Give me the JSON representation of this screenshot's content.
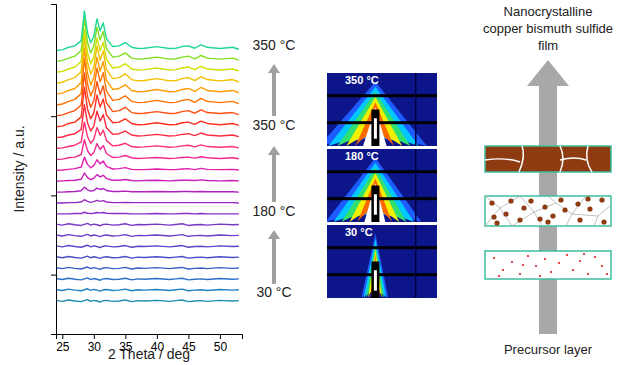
{
  "chart_data": {
    "type": "line",
    "xlabel": "2 Theta / deg",
    "ylabel": "Intensity / a.u.",
    "x": [
      24,
      25,
      26,
      27,
      28,
      28.5,
      29,
      29.5,
      30,
      30.5,
      31,
      31.5,
      32,
      33,
      34,
      35,
      36,
      37,
      38,
      40,
      42,
      43,
      44,
      45,
      46,
      47,
      48,
      50,
      52,
      53
    ],
    "xlim": [
      24,
      53.5
    ],
    "xticks": [
      25,
      30,
      35,
      40,
      45,
      50
    ],
    "ylim": [
      0,
      100
    ],
    "yticks": [
      18,
      42,
      66
    ],
    "tick_labels": "x",
    "annotations": [
      "350 °C",
      "350 °C",
      "180 °C",
      "30 °C"
    ],
    "series": [
      {
        "color": "#1f8fb0",
        "values": [
          10.2,
          9.9,
          10.3,
          10,
          9.8,
          10.1,
          10.4,
          9.9,
          10.2,
          10,
          9.7,
          10.1,
          10.2,
          9.9,
          10,
          10.3,
          9.8,
          10.1,
          10,
          10.2,
          9.9,
          10.1,
          10.3,
          9.8,
          10,
          10.1,
          9.9,
          10.2,
          10,
          10.1
        ]
      },
      {
        "color": "#2080c0",
        "values": [
          13.5,
          13.2,
          13.6,
          13.3,
          13.1,
          13.4,
          13.7,
          13.2,
          13.5,
          13.3,
          13,
          13.4,
          13.5,
          13.2,
          13.3,
          13.6,
          13.1,
          13.4,
          13.3,
          13.5,
          13.2,
          13.4,
          13.6,
          13.1,
          13.3,
          13.4,
          13.2,
          13.5,
          13.3,
          13.4
        ]
      },
      {
        "color": "#2a70c8",
        "values": [
          16.8,
          16.5,
          16.9,
          16.6,
          16.4,
          16.7,
          17,
          16.5,
          16.8,
          16.6,
          16.3,
          16.7,
          16.8,
          16.5,
          16.6,
          16.9,
          16.4,
          16.7,
          16.6,
          16.8,
          16.5,
          16.7,
          16.9,
          16.4,
          16.6,
          16.7,
          16.5,
          16.8,
          16.6,
          16.7
        ]
      },
      {
        "color": "#3a60c8",
        "values": [
          20.1,
          19.8,
          20.2,
          19.9,
          19.7,
          20,
          20.3,
          19.8,
          20.1,
          19.9,
          19.6,
          20,
          20.1,
          19.8,
          19.9,
          20.2,
          19.7,
          20,
          19.9,
          20.1,
          19.8,
          20,
          20.2,
          19.7,
          19.9,
          20,
          19.8,
          20.1,
          19.9,
          20
        ]
      },
      {
        "color": "#4a50c8",
        "values": [
          23.4,
          23.1,
          23.5,
          23.2,
          23,
          23.3,
          23.6,
          23.1,
          23.4,
          23.2,
          22.9,
          23.3,
          23.4,
          23.1,
          23.2,
          23.5,
          23,
          23.3,
          23.2,
          23.4,
          23.1,
          23.3,
          23.5,
          23,
          23.2,
          23.3,
          23.1,
          23.4,
          23.2,
          23.3
        ]
      },
      {
        "color": "#5a48c8",
        "values": [
          26.7,
          26.4,
          26.8,
          26.5,
          26.3,
          26.6,
          26.9,
          26.4,
          26.7,
          26.5,
          26.2,
          26.6,
          26.7,
          26.4,
          26.5,
          26.8,
          26.3,
          26.6,
          26.5,
          26.7,
          26.4,
          26.6,
          26.8,
          26.3,
          26.5,
          26.6,
          26.4,
          26.7,
          26.5,
          26.6
        ]
      },
      {
        "color": "#6a40c8",
        "values": [
          30,
          29.7,
          30.1,
          29.8,
          29.6,
          29.9,
          30.2,
          29.7,
          30,
          29.8,
          29.5,
          29.9,
          30,
          29.7,
          29.8,
          30.1,
          29.6,
          29.9,
          29.8,
          30,
          29.7,
          29.9,
          30.1,
          29.6,
          29.8,
          29.9,
          29.7,
          30,
          29.8,
          29.9
        ]
      },
      {
        "color": "#7a38c8",
        "values": [
          33.3,
          33,
          33.4,
          33.1,
          32.9,
          33.2,
          33.5,
          33,
          33.3,
          33.1,
          32.8,
          33.2,
          33.3,
          33,
          33.1,
          33.4,
          32.9,
          33.2,
          33.1,
          33.3,
          33,
          33.2,
          33.4,
          32.9,
          33.1,
          33.2,
          33,
          33.3,
          33.1,
          33.2
        ]
      },
      {
        "color": "#8a30c8",
        "values": [
          36.4,
          36.4,
          36.4,
          36.5,
          36.5,
          36.9,
          36.6,
          36.5,
          36.6,
          36.8,
          36.7,
          36.8,
          36.6,
          36.5,
          36.5,
          36.5,
          36.4,
          36.4,
          36.4,
          36.5,
          36.4,
          36.4,
          36.5,
          36.5,
          36.4,
          36.5,
          36.4,
          36.4,
          36.4,
          36.4
        ]
      },
      {
        "color": "#9a28c0",
        "values": [
          39.7,
          39.7,
          39.8,
          39.8,
          40,
          40.7,
          40.2,
          39.9,
          40.1,
          40.5,
          40.2,
          40.4,
          40,
          39.8,
          39.8,
          39.9,
          39.8,
          39.8,
          39.8,
          39.8,
          39.8,
          39.8,
          39.8,
          39.8,
          39.8,
          39.8,
          39.8,
          39.8,
          39.8,
          39.7
        ]
      },
      {
        "color": "#b020c0",
        "values": [
          43,
          43,
          43.1,
          43.2,
          43.4,
          44.5,
          43.7,
          43.3,
          43.5,
          44.2,
          43.8,
          44.1,
          43.5,
          43.2,
          43.2,
          43.3,
          43.1,
          43.1,
          43.1,
          43.2,
          43.1,
          43.1,
          43.2,
          43.2,
          43.1,
          43.2,
          43.1,
          43.1,
          43.1,
          43
        ]
      },
      {
        "color": "#c820b8",
        "values": [
          46.3,
          46.4,
          46.5,
          46.6,
          46.9,
          48.8,
          47.4,
          46.8,
          47.2,
          48.3,
          47.6,
          48.1,
          47.1,
          46.6,
          46.6,
          46.8,
          46.5,
          46.4,
          46.5,
          46.6,
          46.4,
          46.5,
          46.6,
          46.6,
          46.5,
          46.7,
          46.5,
          46.4,
          46.5,
          46.4
        ]
      },
      {
        "color": "#e020b0",
        "values": [
          49.6,
          49.7,
          49.9,
          50.1,
          50.6,
          53.6,
          51.4,
          50.4,
          51,
          52.8,
          51.6,
          52.4,
          50.8,
          50,
          50.1,
          50.4,
          49.9,
          49.8,
          49.8,
          50,
          49.8,
          49.8,
          50,
          50.1,
          49.8,
          50.2,
          49.9,
          49.8,
          49.9,
          49.7
        ]
      },
      {
        "color": "#f02890",
        "values": [
          52.9,
          53,
          53.4,
          53.6,
          54.4,
          58.9,
          55.6,
          54.1,
          55,
          57.7,
          55.9,
          57.1,
          54.7,
          53.5,
          53.6,
          54.1,
          53.4,
          53.2,
          53.3,
          53.5,
          53.2,
          53.3,
          53.5,
          53.6,
          53.3,
          53.7,
          53.4,
          53.2,
          53.4,
          53.1
        ]
      },
      {
        "color": "#ff3070",
        "values": [
          56.2,
          56.4,
          56.8,
          57.2,
          58.2,
          64.2,
          59.8,
          57.8,
          59,
          62.6,
          60.2,
          61.8,
          58.6,
          57,
          57.2,
          57.8,
          56.8,
          56.6,
          56.7,
          57,
          56.6,
          56.7,
          57,
          57.2,
          56.7,
          57.3,
          56.8,
          56.6,
          56.8,
          56.4
        ]
      },
      {
        "color": "#ff2a40",
        "values": [
          59.5,
          59.7,
          60.3,
          60.7,
          62,
          69.5,
          64,
          61.5,
          63,
          67.5,
          64.5,
          66.5,
          62.5,
          60.5,
          60.7,
          61.5,
          60.3,
          60,
          60.1,
          60.5,
          60,
          60.1,
          60.5,
          60.7,
          60.1,
          60.9,
          60.3,
          60,
          60.3,
          59.8
        ]
      },
      {
        "color": "#ff3020",
        "values": [
          62.8,
          63,
          63.8,
          64.2,
          65.8,
          74.8,
          68.2,
          65.2,
          67,
          72.4,
          68.8,
          71.2,
          66.4,
          64,
          64.2,
          65.2,
          63.8,
          63.4,
          63.5,
          64,
          63.4,
          63.5,
          64,
          64.2,
          63.5,
          64.5,
          63.8,
          63.4,
          63.8,
          63.2
        ]
      },
      {
        "color": "#ff5010",
        "values": [
          66.1,
          66.4,
          67.1,
          67.7,
          69.4,
          79.1,
          72,
          68.7,
          70.7,
          76.5,
          72.6,
          75.2,
          70,
          67.4,
          67.7,
          68.7,
          67.1,
          66.8,
          66.9,
          67.4,
          66.8,
          66.9,
          67.4,
          67.7,
          66.9,
          67.9,
          67.1,
          66.8,
          67.1,
          66.5
        ]
      },
      {
        "color": "#ff7000",
        "values": [
          69.4,
          69.7,
          70.5,
          71.1,
          72.9,
          83.4,
          75.7,
          72.2,
          74.3,
          80.6,
          76.4,
          79.2,
          73.6,
          70.8,
          71.1,
          72.2,
          70.5,
          70.1,
          70.2,
          70.8,
          70.1,
          70.2,
          70.8,
          71.1,
          70.2,
          71.4,
          70.5,
          70.1,
          70.5,
          69.8
        ]
      },
      {
        "color": "#ff9a00",
        "values": [
          72.7,
          73,
          73.8,
          74.4,
          76.2,
          86.7,
          79,
          75.5,
          77.6,
          83.9,
          79.7,
          82.5,
          76.9,
          74.1,
          74.4,
          75.5,
          73.8,
          73.4,
          73.5,
          74.1,
          73.4,
          73.5,
          74.1,
          74.4,
          73.5,
          74.7,
          73.8,
          73.4,
          73.8,
          73.1
        ]
      },
      {
        "color": "#f0c000",
        "values": [
          76,
          76.3,
          77.1,
          77.7,
          79.5,
          90,
          82.3,
          78.8,
          80.9,
          87.2,
          83,
          85.8,
          80.2,
          77.4,
          77.7,
          78.8,
          77.1,
          76.7,
          76.8,
          77.4,
          76.7,
          76.8,
          77.4,
          77.7,
          76.8,
          78,
          77.1,
          76.7,
          77.1,
          76.4
        ]
      },
      {
        "color": "#d0e000",
        "values": [
          79.3,
          79.6,
          80.3,
          80.9,
          82.6,
          92.3,
          85.2,
          81.9,
          83.9,
          89.7,
          85.8,
          88.4,
          83.2,
          80.6,
          80.9,
          81.9,
          80.3,
          80,
          80.1,
          80.6,
          80,
          80.1,
          80.6,
          80.9,
          80.1,
          81.1,
          80.3,
          80,
          80.3,
          79.7
        ]
      },
      {
        "color": "#80e020",
        "values": [
          82.6,
          82.9,
          83.6,
          84.2,
          85.9,
          95.6,
          88.5,
          85.2,
          87.2,
          93,
          89.1,
          91.7,
          86.5,
          83.9,
          84.2,
          85.2,
          83.6,
          83.3,
          83.4,
          83.9,
          83.3,
          83.4,
          83.9,
          84.2,
          83.4,
          84.4,
          83.6,
          83.3,
          83.6,
          83
        ]
      },
      {
        "color": "#20d890",
        "values": [
          85.9,
          86.1,
          86.9,
          87.3,
          88.9,
          97.9,
          91.3,
          88.3,
          90.1,
          95.5,
          91.9,
          94.3,
          89.5,
          87.1,
          87.3,
          88.3,
          86.9,
          86.5,
          86.6,
          87.1,
          86.5,
          86.6,
          87.1,
          87.3,
          86.6,
          87.6,
          86.9,
          86.5,
          86.9,
          86.3
        ]
      }
    ]
  },
  "giwaxs_panels": {
    "labels": [
      "350 °C",
      "180 °C",
      "30 °C"
    ]
  },
  "schematic": {
    "title_lines": [
      "Nanocrystalline",
      "copper bismuth sulfide",
      "film"
    ],
    "bottom_label": "Precursor layer"
  }
}
